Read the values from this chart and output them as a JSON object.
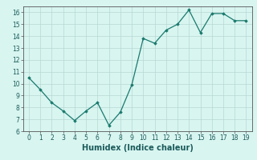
{
  "x": [
    0,
    1,
    2,
    3,
    4,
    5,
    6,
    7,
    8,
    9,
    10,
    11,
    12,
    13,
    14,
    15,
    16,
    17,
    18,
    19
  ],
  "y": [
    10.5,
    9.5,
    8.4,
    7.7,
    6.9,
    7.7,
    8.4,
    6.5,
    7.6,
    9.9,
    13.8,
    13.4,
    14.5,
    15.0,
    16.2,
    14.3,
    15.9,
    15.9,
    15.3,
    15.3
  ],
  "line_color": "#1a7a6e",
  "marker": "D",
  "marker_size": 1.8,
  "bg_color": "#d8f5f0",
  "grid_color": "#b8d8d4",
  "xlabel": "Humidex (Indice chaleur)",
  "xlim": [
    -0.5,
    19.5
  ],
  "ylim": [
    6,
    16.5
  ],
  "yticks": [
    6,
    7,
    8,
    9,
    10,
    11,
    12,
    13,
    14,
    15,
    16
  ],
  "xticks": [
    0,
    1,
    2,
    3,
    4,
    5,
    6,
    7,
    8,
    9,
    10,
    11,
    12,
    13,
    14,
    15,
    16,
    17,
    18,
    19
  ],
  "tick_fontsize": 5.5,
  "xlabel_fontsize": 7,
  "line_width": 0.9
}
